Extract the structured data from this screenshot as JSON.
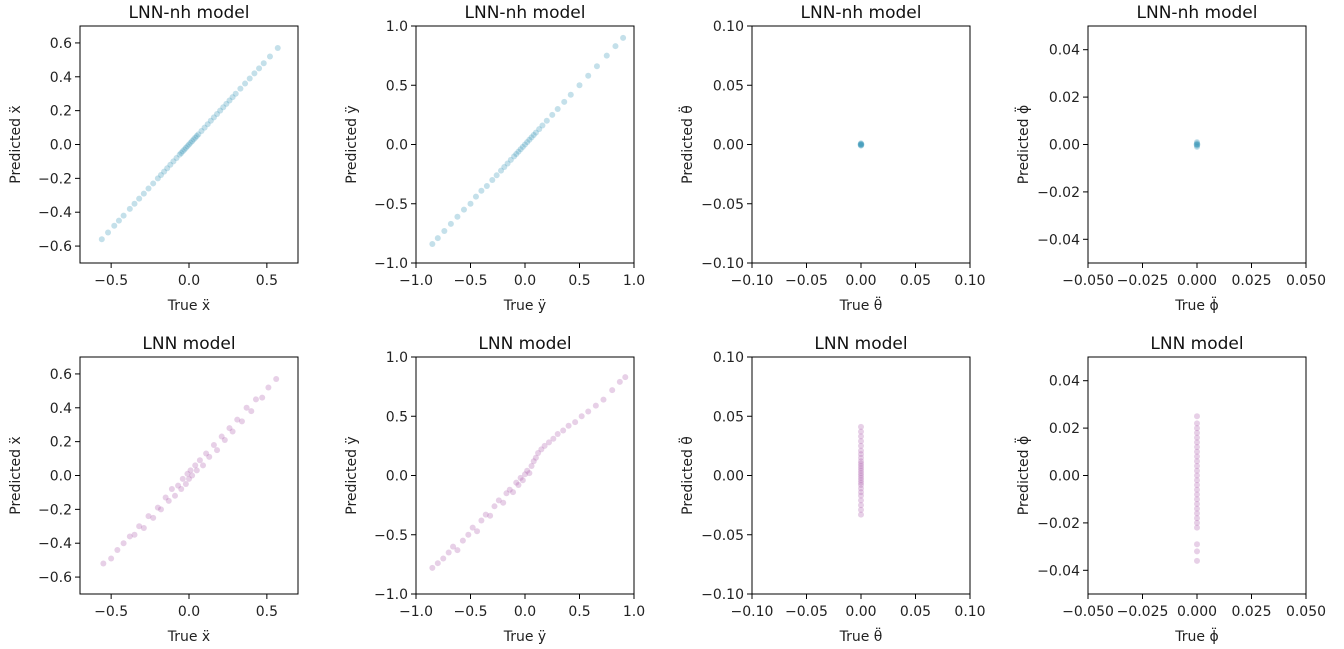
{
  "chart_data": [
    {
      "type": "scatter",
      "title": "LNN-nh model",
      "color": "#3a97b8",
      "opacity": 0.3,
      "xlabel": "True ẍ",
      "ylabel": "Predicted ẍ",
      "xlim": [
        -0.7,
        0.7
      ],
      "ylim": [
        -0.7,
        0.7
      ],
      "xticks": [
        -0.5,
        0.0,
        0.5
      ],
      "xticklabels": [
        "−0.5",
        "0.0",
        "0.5"
      ],
      "yticks": [
        -0.6,
        -0.4,
        -0.2,
        0.0,
        0.2,
        0.4,
        0.6
      ],
      "yticklabels": [
        "−0.6",
        "−0.4",
        "−0.2",
        "0.0",
        "0.2",
        "0.4",
        "0.6"
      ],
      "points": [
        [
          -0.56,
          -0.56
        ],
        [
          -0.52,
          -0.52
        ],
        [
          -0.48,
          -0.48
        ],
        [
          -0.45,
          -0.45
        ],
        [
          -0.42,
          -0.42
        ],
        [
          -0.38,
          -0.38
        ],
        [
          -0.35,
          -0.35
        ],
        [
          -0.32,
          -0.32
        ],
        [
          -0.29,
          -0.29
        ],
        [
          -0.26,
          -0.26
        ],
        [
          -0.23,
          -0.23
        ],
        [
          -0.2,
          -0.2
        ],
        [
          -0.18,
          -0.18
        ],
        [
          -0.16,
          -0.16
        ],
        [
          -0.14,
          -0.14
        ],
        [
          -0.12,
          -0.12
        ],
        [
          -0.1,
          -0.1
        ],
        [
          -0.08,
          -0.08
        ],
        [
          -0.06,
          -0.06
        ],
        [
          -0.05,
          -0.05
        ],
        [
          -0.04,
          -0.04
        ],
        [
          -0.03,
          -0.03
        ],
        [
          -0.02,
          -0.02
        ],
        [
          -0.01,
          -0.01
        ],
        [
          0.0,
          0.0
        ],
        [
          0.01,
          0.01
        ],
        [
          0.02,
          0.02
        ],
        [
          0.03,
          0.03
        ],
        [
          0.04,
          0.04
        ],
        [
          0.05,
          0.05
        ],
        [
          0.06,
          0.06
        ],
        [
          0.08,
          0.08
        ],
        [
          0.1,
          0.1
        ],
        [
          0.12,
          0.12
        ],
        [
          0.14,
          0.14
        ],
        [
          0.16,
          0.16
        ],
        [
          0.18,
          0.18
        ],
        [
          0.2,
          0.2
        ],
        [
          0.22,
          0.22
        ],
        [
          0.24,
          0.24
        ],
        [
          0.26,
          0.26
        ],
        [
          0.28,
          0.28
        ],
        [
          0.3,
          0.3
        ],
        [
          0.33,
          0.33
        ],
        [
          0.36,
          0.36
        ],
        [
          0.39,
          0.39
        ],
        [
          0.42,
          0.42
        ],
        [
          0.45,
          0.45
        ],
        [
          0.48,
          0.48
        ],
        [
          0.52,
          0.52
        ],
        [
          0.57,
          0.57
        ]
      ]
    },
    {
      "type": "scatter",
      "title": "LNN-nh model",
      "color": "#3a97b8",
      "opacity": 0.3,
      "xlabel": "True ÿ",
      "ylabel": "Predicted ÿ",
      "xlim": [
        -1.0,
        1.0
      ],
      "ylim": [
        -1.0,
        1.0
      ],
      "xticks": [
        -1.0,
        -0.5,
        0.0,
        0.5,
        1.0
      ],
      "xticklabels": [
        "−1.0",
        "−0.5",
        "0.0",
        "0.5",
        "1.0"
      ],
      "yticks": [
        -1.0,
        -0.5,
        0.0,
        0.5,
        1.0
      ],
      "yticklabels": [
        "−1.0",
        "−0.5",
        "0.0",
        "0.5",
        "1.0"
      ],
      "points": [
        [
          -0.85,
          -0.84
        ],
        [
          -0.8,
          -0.79
        ],
        [
          -0.74,
          -0.73
        ],
        [
          -0.68,
          -0.67
        ],
        [
          -0.62,
          -0.61
        ],
        [
          -0.56,
          -0.55
        ],
        [
          -0.5,
          -0.5
        ],
        [
          -0.45,
          -0.44
        ],
        [
          -0.4,
          -0.39
        ],
        [
          -0.35,
          -0.35
        ],
        [
          -0.3,
          -0.3
        ],
        [
          -0.26,
          -0.26
        ],
        [
          -0.22,
          -0.22
        ],
        [
          -0.19,
          -0.19
        ],
        [
          -0.16,
          -0.16
        ],
        [
          -0.13,
          -0.13
        ],
        [
          -0.1,
          -0.1
        ],
        [
          -0.08,
          -0.08
        ],
        [
          -0.06,
          -0.06
        ],
        [
          -0.04,
          -0.04
        ],
        [
          -0.02,
          -0.02
        ],
        [
          0.0,
          0.0
        ],
        [
          0.02,
          0.02
        ],
        [
          0.04,
          0.04
        ],
        [
          0.06,
          0.06
        ],
        [
          0.08,
          0.08
        ],
        [
          0.1,
          0.1
        ],
        [
          0.13,
          0.13
        ],
        [
          0.16,
          0.16
        ],
        [
          0.2,
          0.2
        ],
        [
          0.25,
          0.25
        ],
        [
          0.3,
          0.3
        ],
        [
          0.36,
          0.36
        ],
        [
          0.42,
          0.42
        ],
        [
          0.5,
          0.5
        ],
        [
          0.58,
          0.58
        ],
        [
          0.66,
          0.66
        ],
        [
          0.75,
          0.75
        ],
        [
          0.83,
          0.83
        ],
        [
          0.9,
          0.9
        ]
      ]
    },
    {
      "type": "scatter",
      "title": "LNN-nh model",
      "color": "#3a97b8",
      "opacity": 0.3,
      "xlabel": "True θ̈",
      "ylabel": "Predicted θ̈",
      "xlim": [
        -0.1,
        0.1
      ],
      "ylim": [
        -0.1,
        0.1
      ],
      "xticks": [
        -0.1,
        -0.05,
        0.0,
        0.05,
        0.1
      ],
      "xticklabels": [
        "−0.10",
        "−0.05",
        "0.00",
        "0.05",
        "0.10"
      ],
      "yticks": [
        -0.1,
        -0.05,
        0.0,
        0.05,
        0.1
      ],
      "yticklabels": [
        "−0.10",
        "−0.05",
        "0.00",
        "0.05",
        "0.10"
      ],
      "points": [
        [
          0.0,
          0.0
        ],
        [
          0.0,
          0.001
        ],
        [
          0.0,
          -0.001
        ],
        [
          0.0005,
          0.0
        ],
        [
          -0.0005,
          0.0
        ],
        [
          0.0,
          0.0005
        ],
        [
          0.0,
          -0.0005
        ]
      ]
    },
    {
      "type": "scatter",
      "title": "LNN-nh model",
      "color": "#3a97b8",
      "opacity": 0.3,
      "xlabel": "True ϕ̈",
      "ylabel": "Predicted ϕ̈",
      "xlim": [
        -0.05,
        0.05
      ],
      "ylim": [
        -0.05,
        0.05
      ],
      "xticks": [
        -0.05,
        -0.025,
        0.0,
        0.025,
        0.05
      ],
      "xticklabels": [
        "−0.050",
        "−0.025",
        "0.000",
        "0.025",
        "0.050"
      ],
      "yticks": [
        -0.04,
        -0.02,
        0.0,
        0.02,
        0.04
      ],
      "yticklabels": [
        "−0.04",
        "−0.02",
        "0.00",
        "0.02",
        "0.04"
      ],
      "points": [
        [
          0.0,
          0.0
        ],
        [
          0.0,
          0.0005
        ],
        [
          0.0,
          -0.0005
        ],
        [
          0.0002,
          0.0
        ],
        [
          -0.0002,
          0.0
        ],
        [
          0.0,
          0.001
        ],
        [
          0.0,
          -0.001
        ]
      ]
    },
    {
      "type": "scatter",
      "title": "LNN model",
      "color": "#b163b0",
      "opacity": 0.3,
      "xlabel": "True ẍ",
      "ylabel": "Predicted ẍ",
      "xlim": [
        -0.7,
        0.7
      ],
      "ylim": [
        -0.7,
        0.7
      ],
      "xticks": [
        -0.5,
        0.0,
        0.5
      ],
      "xticklabels": [
        "−0.5",
        "0.0",
        "0.5"
      ],
      "yticks": [
        -0.6,
        -0.4,
        -0.2,
        0.0,
        0.2,
        0.4,
        0.6
      ],
      "yticklabels": [
        "−0.6",
        "−0.4",
        "−0.2",
        "0.0",
        "0.2",
        "0.4",
        "0.6"
      ],
      "points": [
        [
          -0.55,
          -0.52
        ],
        [
          -0.5,
          -0.49
        ],
        [
          -0.46,
          -0.44
        ],
        [
          -0.42,
          -0.4
        ],
        [
          -0.38,
          -0.36
        ],
        [
          -0.35,
          -0.35
        ],
        [
          -0.32,
          -0.3
        ],
        [
          -0.29,
          -0.31
        ],
        [
          -0.26,
          -0.24
        ],
        [
          -0.23,
          -0.25
        ],
        [
          -0.2,
          -0.19
        ],
        [
          -0.18,
          -0.2
        ],
        [
          -0.15,
          -0.13
        ],
        [
          -0.13,
          -0.15
        ],
        [
          -0.11,
          -0.08
        ],
        [
          -0.09,
          -0.12
        ],
        [
          -0.07,
          -0.06
        ],
        [
          -0.05,
          -0.08
        ],
        [
          -0.04,
          -0.02
        ],
        [
          -0.02,
          -0.05
        ],
        [
          -0.01,
          0.01
        ],
        [
          0.0,
          -0.02
        ],
        [
          0.01,
          0.03
        ],
        [
          0.02,
          -0.0
        ],
        [
          0.04,
          0.06
        ],
        [
          0.05,
          0.03
        ],
        [
          0.07,
          0.09
        ],
        [
          0.09,
          0.06
        ],
        [
          0.11,
          0.13
        ],
        [
          0.13,
          0.11
        ],
        [
          0.16,
          0.18
        ],
        [
          0.18,
          0.15
        ],
        [
          0.21,
          0.23
        ],
        [
          0.23,
          0.21
        ],
        [
          0.26,
          0.28
        ],
        [
          0.28,
          0.26
        ],
        [
          0.31,
          0.33
        ],
        [
          0.34,
          0.32
        ],
        [
          0.37,
          0.4
        ],
        [
          0.4,
          0.38
        ],
        [
          0.43,
          0.45
        ],
        [
          0.47,
          0.46
        ],
        [
          0.51,
          0.52
        ],
        [
          0.56,
          0.57
        ]
      ]
    },
    {
      "type": "scatter",
      "title": "LNN model",
      "color": "#b163b0",
      "opacity": 0.3,
      "xlabel": "True ÿ",
      "ylabel": "Predicted ÿ",
      "xlim": [
        -1.0,
        1.0
      ],
      "ylim": [
        -1.0,
        1.0
      ],
      "xticks": [
        -1.0,
        -0.5,
        0.0,
        0.5,
        1.0
      ],
      "xticklabels": [
        "−1.0",
        "−0.5",
        "0.0",
        "0.5",
        "1.0"
      ],
      "yticks": [
        -1.0,
        -0.5,
        0.0,
        0.5,
        1.0
      ],
      "yticklabels": [
        "−1.0",
        "−0.5",
        "0.0",
        "0.5",
        "1.0"
      ],
      "points": [
        [
          -0.85,
          -0.78
        ],
        [
          -0.8,
          -0.74
        ],
        [
          -0.75,
          -0.7
        ],
        [
          -0.7,
          -0.65
        ],
        [
          -0.66,
          -0.6
        ],
        [
          -0.62,
          -0.63
        ],
        [
          -0.57,
          -0.55
        ],
        [
          -0.52,
          -0.5
        ],
        [
          -0.48,
          -0.44
        ],
        [
          -0.44,
          -0.47
        ],
        [
          -0.4,
          -0.38
        ],
        [
          -0.36,
          -0.33
        ],
        [
          -0.32,
          -0.34
        ],
        [
          -0.28,
          -0.26
        ],
        [
          -0.24,
          -0.21
        ],
        [
          -0.2,
          -0.23
        ],
        [
          -0.17,
          -0.15
        ],
        [
          -0.14,
          -0.12
        ],
        [
          -0.11,
          -0.14
        ],
        [
          -0.08,
          -0.06
        ],
        [
          -0.06,
          -0.08
        ],
        [
          -0.04,
          -0.02
        ],
        [
          -0.02,
          -0.04
        ],
        [
          0.0,
          0.01
        ],
        [
          0.02,
          0.04
        ],
        [
          0.04,
          0.02
        ],
        [
          0.06,
          0.08
        ],
        [
          0.08,
          0.12
        ],
        [
          0.1,
          0.15
        ],
        [
          0.12,
          0.19
        ],
        [
          0.15,
          0.22
        ],
        [
          0.18,
          0.25
        ],
        [
          0.22,
          0.28
        ],
        [
          0.26,
          0.31
        ],
        [
          0.3,
          0.35
        ],
        [
          0.35,
          0.38
        ],
        [
          0.4,
          0.42
        ],
        [
          0.46,
          0.45
        ],
        [
          0.52,
          0.5
        ],
        [
          0.58,
          0.54
        ],
        [
          0.65,
          0.59
        ],
        [
          0.72,
          0.64
        ],
        [
          0.8,
          0.72
        ],
        [
          0.87,
          0.79
        ],
        [
          0.92,
          0.83
        ]
      ]
    },
    {
      "type": "scatter",
      "title": "LNN model",
      "color": "#b163b0",
      "opacity": 0.3,
      "xlabel": "True θ̈",
      "ylabel": "Predicted θ̈",
      "xlim": [
        -0.1,
        0.1
      ],
      "ylim": [
        -0.1,
        0.1
      ],
      "xticks": [
        -0.1,
        -0.05,
        0.0,
        0.05,
        0.1
      ],
      "xticklabels": [
        "−0.10",
        "−0.05",
        "0.00",
        "0.05",
        "0.10"
      ],
      "yticks": [
        -0.1,
        -0.05,
        0.0,
        0.05,
        0.1
      ],
      "yticklabels": [
        "−0.10",
        "−0.05",
        "0.00",
        "0.05",
        "0.10"
      ],
      "points": [
        [
          0.0,
          0.041
        ],
        [
          0.0,
          0.037
        ],
        [
          0.0,
          0.033
        ],
        [
          0.0,
          0.029
        ],
        [
          0.0,
          0.025
        ],
        [
          0.0,
          0.021
        ],
        [
          0.0,
          0.018
        ],
        [
          0.0,
          0.015
        ],
        [
          0.0,
          0.012
        ],
        [
          0.0,
          0.01
        ],
        [
          0.0,
          0.008
        ],
        [
          0.0,
          0.006
        ],
        [
          0.0,
          0.004
        ],
        [
          0.0,
          0.002
        ],
        [
          0.0,
          0.0
        ],
        [
          0.0,
          -0.002
        ],
        [
          0.0,
          -0.004
        ],
        [
          0.0,
          -0.006
        ],
        [
          0.0,
          -0.008
        ],
        [
          0.0,
          -0.011
        ],
        [
          0.0,
          -0.014
        ],
        [
          0.0,
          -0.017
        ],
        [
          0.0,
          -0.021
        ],
        [
          0.0,
          -0.025
        ],
        [
          0.0,
          -0.029
        ],
        [
          0.0,
          -0.033
        ]
      ]
    },
    {
      "type": "scatter",
      "title": "LNN model",
      "color": "#b163b0",
      "opacity": 0.3,
      "xlabel": "True ϕ̈",
      "ylabel": "Predicted ϕ̈",
      "xlim": [
        -0.05,
        0.05
      ],
      "ylim": [
        -0.05,
        0.05
      ],
      "xticks": [
        -0.05,
        -0.025,
        0.0,
        0.025,
        0.05
      ],
      "xticklabels": [
        "−0.050",
        "−0.025",
        "0.000",
        "0.025",
        "0.050"
      ],
      "yticks": [
        -0.04,
        -0.02,
        0.0,
        0.02,
        0.04
      ],
      "yticklabels": [
        "−0.04",
        "−0.02",
        "0.00",
        "0.02",
        "0.04"
      ],
      "points": [
        [
          0.0,
          0.025
        ],
        [
          0.0,
          0.022
        ],
        [
          0.0,
          0.02
        ],
        [
          0.0,
          0.018
        ],
        [
          0.0,
          0.016
        ],
        [
          0.0,
          0.014
        ],
        [
          0.0,
          0.012
        ],
        [
          0.0,
          0.01
        ],
        [
          0.0,
          0.008
        ],
        [
          0.0,
          0.006
        ],
        [
          0.0,
          0.004
        ],
        [
          0.0,
          0.002
        ],
        [
          0.0,
          0.0
        ],
        [
          0.0,
          -0.002
        ],
        [
          0.0,
          -0.004
        ],
        [
          0.0,
          -0.006
        ],
        [
          0.0,
          -0.008
        ],
        [
          0.0,
          -0.01
        ],
        [
          0.0,
          -0.012
        ],
        [
          0.0,
          -0.014
        ],
        [
          0.0,
          -0.016
        ],
        [
          0.0,
          -0.018
        ],
        [
          0.0,
          -0.02
        ],
        [
          0.0,
          -0.022
        ],
        [
          0.0,
          -0.029
        ],
        [
          0.0,
          -0.032
        ],
        [
          0.0,
          -0.036
        ]
      ]
    }
  ]
}
